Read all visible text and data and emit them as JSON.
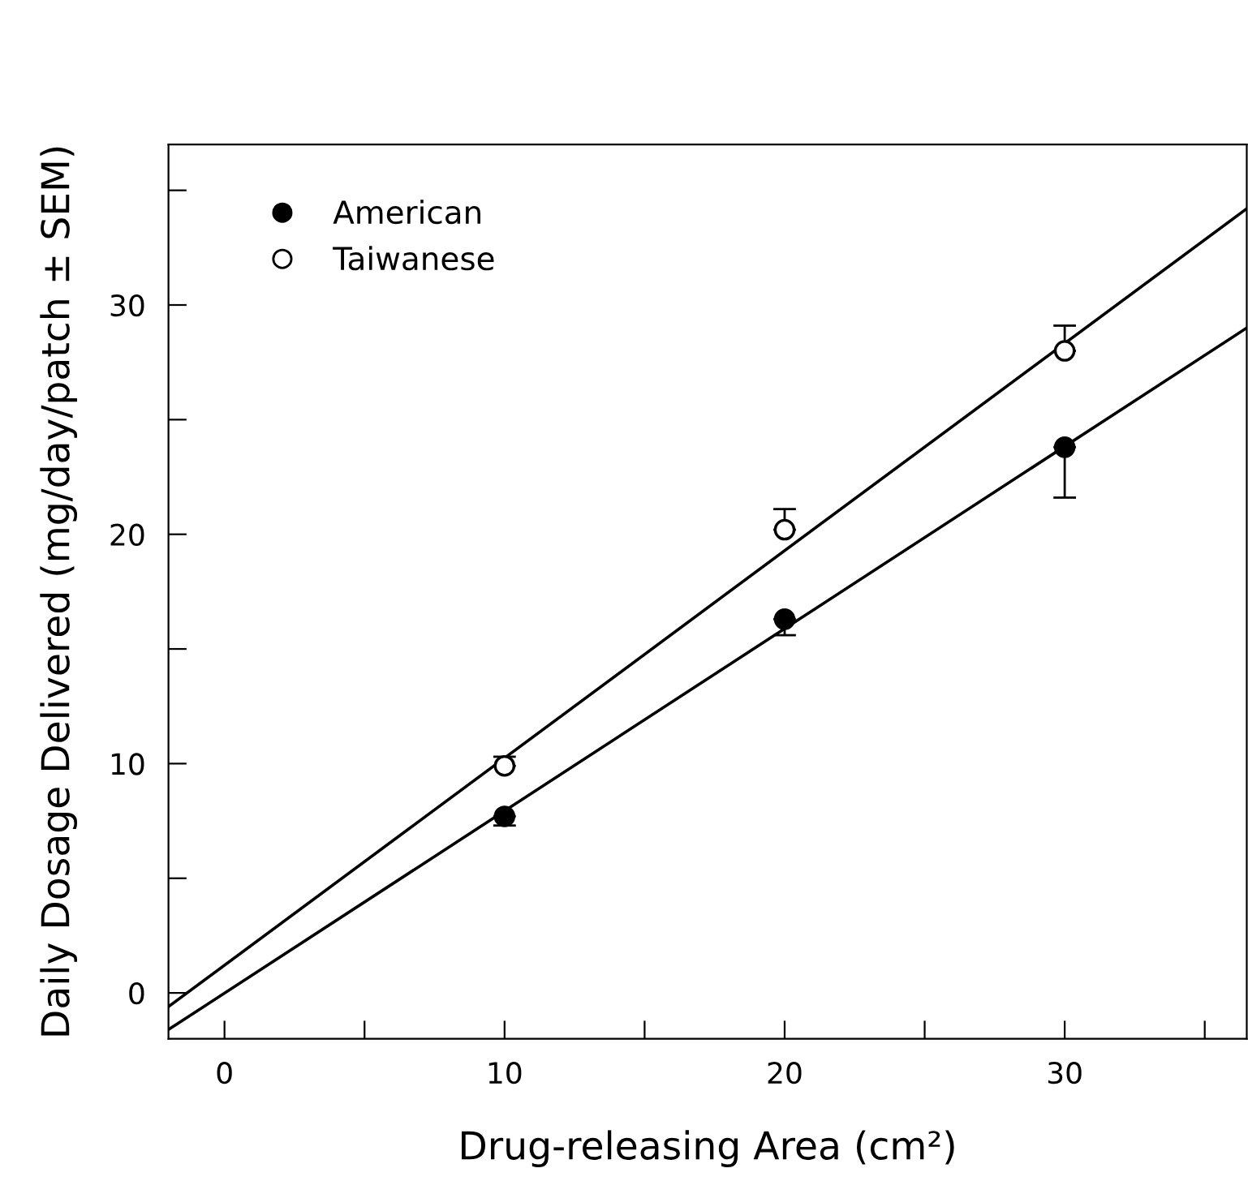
{
  "chart_data": {
    "type": "scatter",
    "xlabel": "Drug-releasing Area (cm²)",
    "ylabel": "Daily Dosage Delivered (mg/day/patch ± SEM)",
    "xlim": [
      -2,
      36.5
    ],
    "ylim": [
      -2,
      37
    ],
    "xticks": [
      0,
      {
        "value": 5,
        "label": null
      },
      10,
      {
        "value": 15,
        "label": null
      },
      20,
      {
        "value": 25,
        "label": null
      },
      30,
      {
        "value": 35,
        "label": null
      }
    ],
    "yticks": [
      0,
      {
        "value": 5,
        "label": null
      },
      10,
      {
        "value": 15,
        "label": null
      },
      20,
      {
        "value": 25,
        "label": null
      },
      30,
      {
        "value": 35,
        "label": null
      }
    ],
    "grid": false,
    "legend": "top left",
    "marker": "circle",
    "series": [
      {
        "name": "American",
        "color": "#000000",
        "x": [
          10,
          20,
          30
        ],
        "values": [
          7.7,
          16.3,
          23.8
        ],
        "errors": [
          [
            7.3,
            7.7
          ],
          [
            15.6,
            16.3
          ],
          [
            21.6,
            23.8
          ]
        ]
      },
      {
        "name": "Taiwanese",
        "color": "#ffffff",
        "x": [
          10,
          20,
          30
        ],
        "values": [
          9.9,
          20.2,
          28.0
        ],
        "errors": [
          [
            9.9,
            10.3
          ],
          [
            20.2,
            21.1
          ],
          [
            28.0,
            29.1
          ]
        ]
      },
      {
        "type": "line",
        "color": "#000000",
        "marker": "none",
        "x": [
          -2,
          36.5
        ],
        "values": [
          -1.6,
          29.0
        ]
      },
      {
        "type": "line",
        "color": "#000000",
        "marker": "none",
        "x": [
          -2,
          36.5
        ],
        "values": [
          -0.6,
          34.2
        ]
      }
    ]
  }
}
